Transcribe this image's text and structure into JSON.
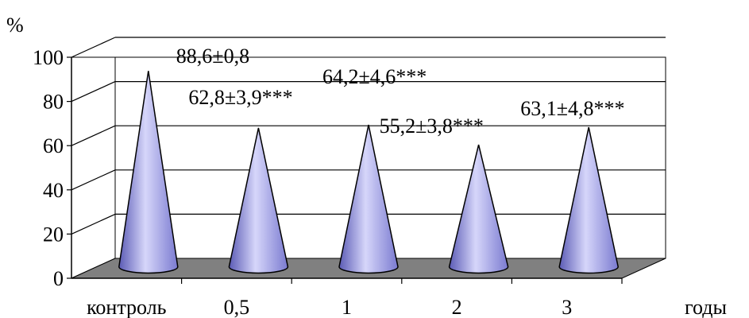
{
  "chart_data": {
    "type": "bar",
    "bar_shape": "cone-3d",
    "title": "",
    "ylabel": "%",
    "xlabel": "годы",
    "ylim": [
      0,
      100
    ],
    "yticks": [
      "0",
      "20",
      "40",
      "60",
      "80",
      "100"
    ],
    "grid": true,
    "categories": [
      "контроль",
      "0,5",
      "1",
      "2",
      "3"
    ],
    "values": [
      88.6,
      62.8,
      64.2,
      55.2,
      63.1
    ],
    "data_labels": [
      "88,6±0,8",
      "62,8±3,9***",
      "64,2±4,6***",
      "55,2±3,8***",
      "63,1±4,8***"
    ],
    "colors": {
      "cone_light": "#d6d6fa",
      "cone_mid": "#9a9ae6",
      "cone_dark": "#5b5bb5",
      "floor": "#808080",
      "wall": "#ffffff"
    }
  }
}
